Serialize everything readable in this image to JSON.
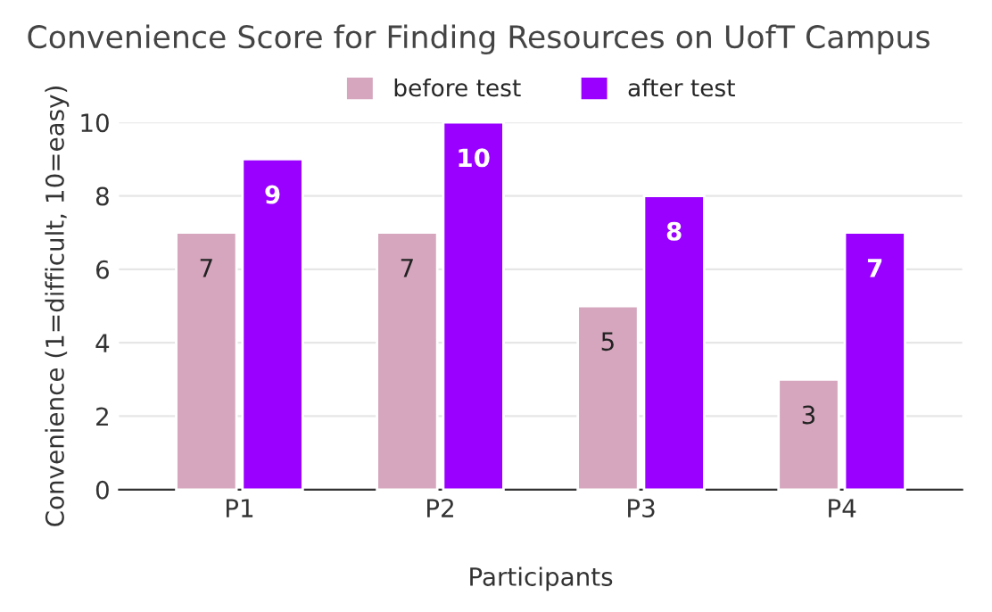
{
  "chart_data": {
    "type": "bar",
    "title": "Convenience Score for Finding Resources on UofT Campus",
    "xlabel": "Participants",
    "ylabel": "Convenience (1=difficult, 10=easy)",
    "categories": [
      "P1",
      "P2",
      "P3",
      "P4"
    ],
    "series": [
      {
        "name": "before test",
        "color": "#d5a6bd",
        "values": [
          7,
          7,
          5,
          3
        ]
      },
      {
        "name": "after test",
        "color": "#9900ff",
        "values": [
          9,
          10,
          8,
          7
        ]
      }
    ],
    "ylim": [
      0,
      10
    ],
    "yticks": [
      0,
      2,
      4,
      6,
      8,
      10
    ],
    "grid": "y",
    "legend": "top",
    "data_labels": true
  }
}
